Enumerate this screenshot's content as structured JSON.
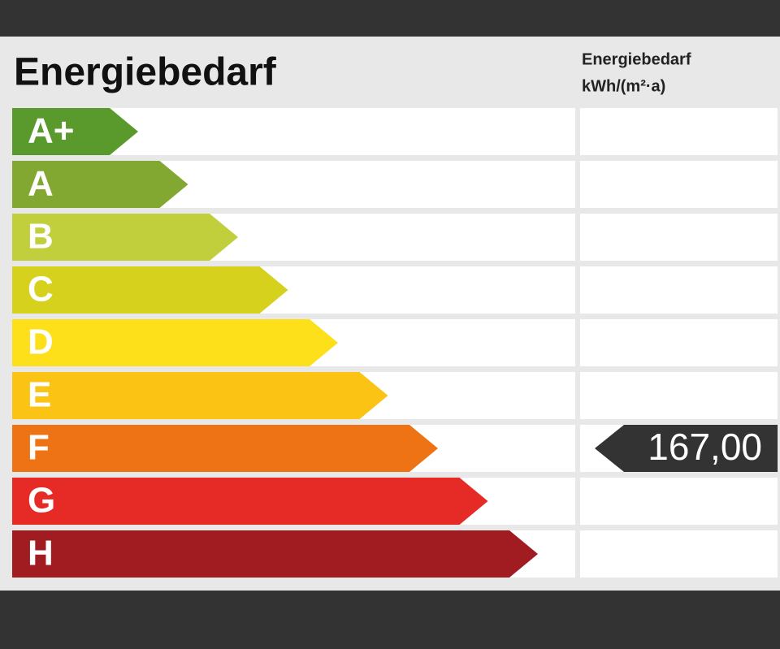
{
  "title": "Energiebedarf",
  "column_header": {
    "line1": "Energiebedarf",
    "line2": "kWh/(m²·a)"
  },
  "classes": [
    {
      "label": "A+",
      "color": "#5a9a2c"
    },
    {
      "label": "A",
      "color": "#82a832"
    },
    {
      "label": "B",
      "color": "#c2cf3c"
    },
    {
      "label": "C",
      "color": "#d6d11c"
    },
    {
      "label": "D",
      "color": "#fde01a"
    },
    {
      "label": "E",
      "color": "#fbc415"
    },
    {
      "label": "F",
      "color": "#ee7314",
      "value": "167,00"
    },
    {
      "label": "G",
      "color": "#e62a25"
    },
    {
      "label": "H",
      "color": "#a11c20"
    }
  ]
}
